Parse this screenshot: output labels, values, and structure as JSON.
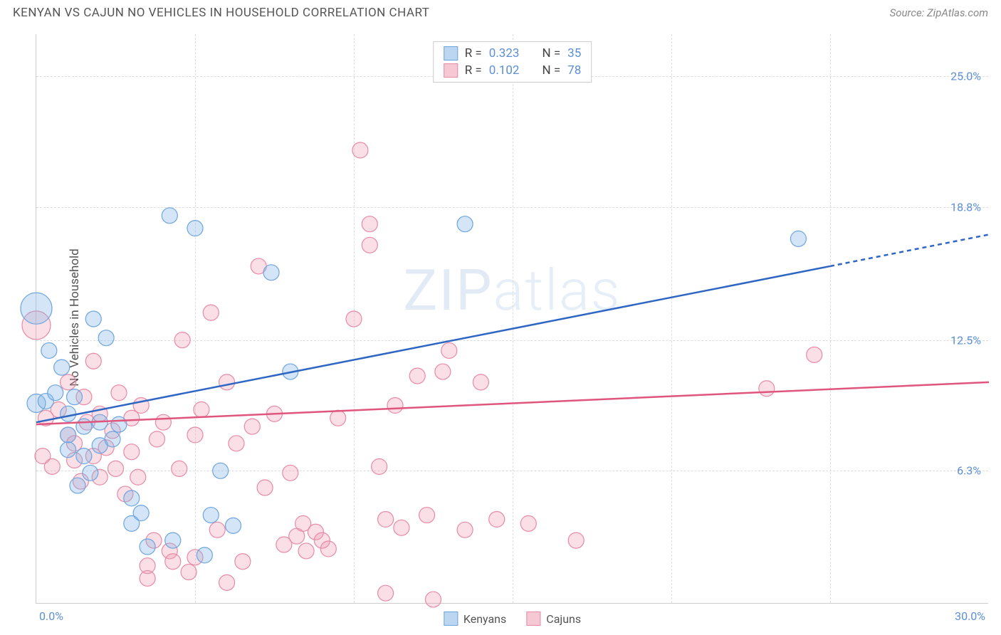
{
  "header": {
    "title": "KENYAN VS CAJUN NO VEHICLES IN HOUSEHOLD CORRELATION CHART",
    "source_prefix": "Source: ",
    "source_name": "ZipAtlas.com"
  },
  "chart": {
    "type": "scatter",
    "y_label": "No Vehicles in Household",
    "background_color": "#ffffff",
    "grid_color": "#dddddd",
    "axis_color": "#cccccc",
    "tick_label_color": "#5b8fd6",
    "xlim": [
      0,
      30
    ],
    "ylim": [
      0,
      27
    ],
    "x_ticks": [
      0,
      30
    ],
    "x_tick_labels": [
      "0.0%",
      "30.0%"
    ],
    "x_gridlines": [
      5,
      10,
      15,
      20,
      25
    ],
    "y_ticks": [
      6.3,
      12.5,
      18.8,
      25.0
    ],
    "y_tick_labels": [
      "6.3%",
      "12.5%",
      "18.8%",
      "25.0%"
    ],
    "watermark": "ZIPatlas",
    "stats": [
      {
        "swatch_fill": "#bcd6f2",
        "swatch_border": "#6ea5e0",
        "R_label": "R =",
        "R": "0.323",
        "N_label": "N =",
        "N": "35"
      },
      {
        "swatch_fill": "#f6c8d3",
        "swatch_border": "#e98aa5",
        "R_label": "R =",
        "R": "0.102",
        "N_label": "N =",
        "N": "78"
      }
    ],
    "legend": [
      {
        "swatch_fill": "#bcd6f2",
        "swatch_border": "#6ea5e0",
        "label": "Kenyans"
      },
      {
        "swatch_fill": "#f6c8d3",
        "swatch_border": "#e98aa5",
        "label": "Cajuns"
      }
    ],
    "series": [
      {
        "name": "Kenyans",
        "marker_fill": "rgba(130,180,230,0.35)",
        "marker_stroke": "#6ea5e0",
        "marker_r": 11,
        "trend": {
          "color": "#2f66c4",
          "width": 2.5,
          "x1": 0,
          "y1": 8.6,
          "x2_solid": 25,
          "y2_solid": 16.0,
          "x2_dash": 30,
          "y2_dash": 17.5
        },
        "points": [
          [
            0.0,
            14.0,
            22
          ],
          [
            0.0,
            9.5,
            13
          ],
          [
            0.3,
            9.6,
            11
          ],
          [
            0.4,
            12.0,
            11
          ],
          [
            0.6,
            10.0,
            11
          ],
          [
            0.8,
            11.2,
            11
          ],
          [
            1.0,
            8.0,
            11
          ],
          [
            1.0,
            7.3,
            11
          ],
          [
            1.0,
            9.0,
            11
          ],
          [
            1.2,
            9.8,
            11
          ],
          [
            1.3,
            5.6,
            11
          ],
          [
            1.5,
            8.4,
            11
          ],
          [
            1.5,
            7.0,
            11
          ],
          [
            1.7,
            6.2,
            11
          ],
          [
            1.8,
            13.5,
            11
          ],
          [
            2.0,
            7.5,
            11
          ],
          [
            2.0,
            8.6,
            11
          ],
          [
            2.2,
            12.6,
            11
          ],
          [
            2.4,
            7.8,
            11
          ],
          [
            2.6,
            8.5,
            11
          ],
          [
            3.0,
            3.8,
            11
          ],
          [
            3.0,
            5.0,
            11
          ],
          [
            3.3,
            4.3,
            11
          ],
          [
            3.5,
            2.7,
            11
          ],
          [
            4.2,
            18.4,
            11
          ],
          [
            4.3,
            3.0,
            11
          ],
          [
            5.0,
            17.8,
            11
          ],
          [
            5.3,
            2.3,
            11
          ],
          [
            5.5,
            4.2,
            11
          ],
          [
            5.8,
            6.3,
            11
          ],
          [
            6.2,
            3.7,
            11
          ],
          [
            7.4,
            15.7,
            11
          ],
          [
            8.0,
            11.0,
            11
          ],
          [
            13.5,
            18.0,
            11
          ],
          [
            24.0,
            17.3,
            11
          ]
        ]
      },
      {
        "name": "Cajuns",
        "marker_fill": "rgba(240,150,175,0.30)",
        "marker_stroke": "#e98aa5",
        "marker_r": 11,
        "trend": {
          "color": "#e0557d",
          "width": 2.5,
          "x1": 0,
          "y1": 8.5,
          "x2_solid": 30,
          "y2_solid": 10.5,
          "x2_dash": 30,
          "y2_dash": 10.5
        },
        "points": [
          [
            0.0,
            13.2,
            20
          ],
          [
            0.2,
            7.0,
            11
          ],
          [
            0.3,
            8.8,
            11
          ],
          [
            0.5,
            6.5,
            11
          ],
          [
            0.7,
            9.2,
            11
          ],
          [
            1.0,
            10.5,
            11
          ],
          [
            1.0,
            8.0,
            11
          ],
          [
            1.2,
            6.8,
            11
          ],
          [
            1.2,
            7.6,
            11
          ],
          [
            1.4,
            5.8,
            11
          ],
          [
            1.5,
            9.8,
            11
          ],
          [
            1.6,
            8.6,
            11
          ],
          [
            1.8,
            7.0,
            11
          ],
          [
            1.8,
            11.5,
            11
          ],
          [
            2.0,
            6.0,
            11
          ],
          [
            2.0,
            9.0,
            11
          ],
          [
            2.2,
            7.4,
            11
          ],
          [
            2.4,
            8.2,
            11
          ],
          [
            2.5,
            6.4,
            11
          ],
          [
            2.6,
            10.0,
            11
          ],
          [
            2.8,
            5.2,
            11
          ],
          [
            3.0,
            8.8,
            11
          ],
          [
            3.0,
            7.2,
            11
          ],
          [
            3.2,
            6.0,
            11
          ],
          [
            3.3,
            9.4,
            11
          ],
          [
            3.5,
            1.8,
            11
          ],
          [
            3.5,
            1.2,
            11
          ],
          [
            3.7,
            3.0,
            11
          ],
          [
            3.8,
            7.8,
            11
          ],
          [
            4.0,
            8.6,
            11
          ],
          [
            4.2,
            2.5,
            11
          ],
          [
            4.3,
            2.0,
            11
          ],
          [
            4.5,
            6.4,
            11
          ],
          [
            4.6,
            12.5,
            11
          ],
          [
            4.8,
            1.5,
            11
          ],
          [
            5.0,
            8.0,
            11
          ],
          [
            5.0,
            2.2,
            11
          ],
          [
            5.2,
            9.2,
            11
          ],
          [
            5.5,
            13.8,
            11
          ],
          [
            5.7,
            3.5,
            11
          ],
          [
            6.0,
            10.5,
            11
          ],
          [
            6.0,
            1.0,
            11
          ],
          [
            6.3,
            7.6,
            11
          ],
          [
            6.5,
            2.0,
            11
          ],
          [
            6.8,
            8.4,
            11
          ],
          [
            7.0,
            16.0,
            11
          ],
          [
            7.2,
            5.5,
            11
          ],
          [
            7.5,
            9.0,
            11
          ],
          [
            7.8,
            2.8,
            11
          ],
          [
            8.0,
            6.2,
            11
          ],
          [
            8.2,
            3.2,
            11
          ],
          [
            8.4,
            3.8,
            11
          ],
          [
            8.5,
            2.5,
            11
          ],
          [
            8.8,
            3.4,
            11
          ],
          [
            9.0,
            3.0,
            11
          ],
          [
            9.2,
            2.6,
            11
          ],
          [
            9.5,
            8.8,
            11
          ],
          [
            10.0,
            13.5,
            11
          ],
          [
            10.2,
            21.5,
            11
          ],
          [
            10.5,
            18.0,
            11
          ],
          [
            10.5,
            17.0,
            11
          ],
          [
            10.8,
            6.5,
            11
          ],
          [
            11.0,
            4.0,
            11
          ],
          [
            11.0,
            0.5,
            11
          ],
          [
            11.3,
            9.4,
            11
          ],
          [
            11.5,
            3.6,
            11
          ],
          [
            12.0,
            10.8,
            11
          ],
          [
            12.3,
            4.2,
            11
          ],
          [
            12.5,
            0.2,
            11
          ],
          [
            12.8,
            11.0,
            11
          ],
          [
            13.5,
            3.5,
            11
          ],
          [
            14.0,
            10.5,
            11
          ],
          [
            14.5,
            4.0,
            11
          ],
          [
            15.5,
            3.8,
            11
          ],
          [
            17.0,
            3.0,
            11
          ],
          [
            23.0,
            10.2,
            11
          ],
          [
            24.5,
            11.8,
            11
          ],
          [
            13.0,
            12.0,
            11
          ]
        ]
      }
    ]
  }
}
